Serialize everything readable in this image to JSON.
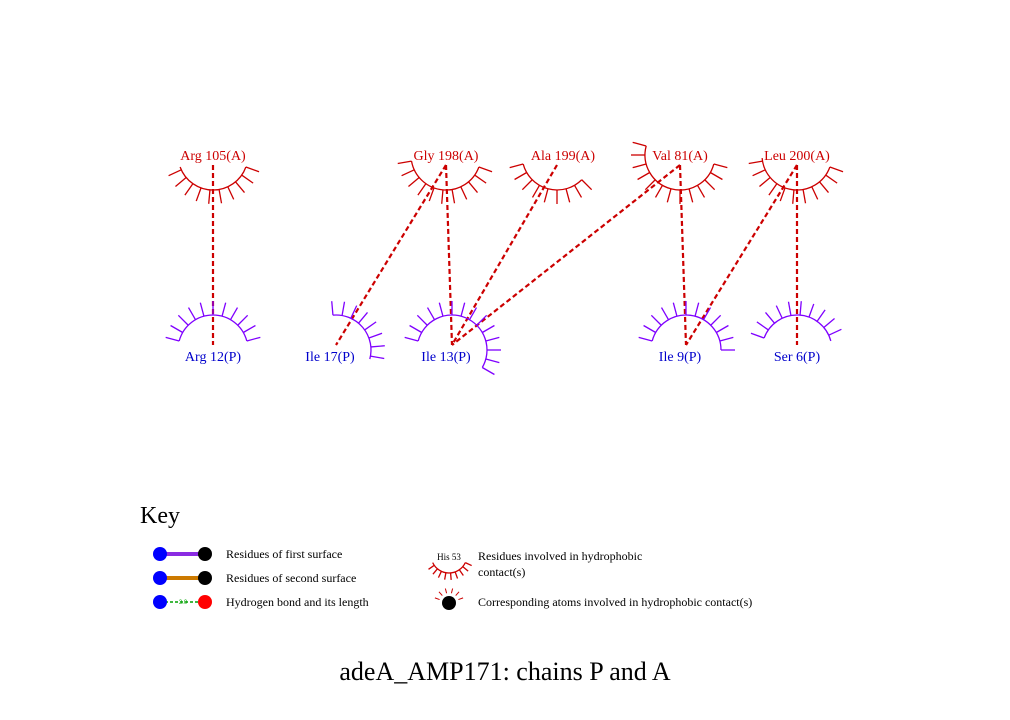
{
  "colors": {
    "chain_a": "#cc0000",
    "chain_p": "#7f00ff",
    "label_p": "#0000cc",
    "contact_line": "#cc0000",
    "first_surface_bond": "#8a2be2",
    "second_surface_bond": "#cc7a00",
    "hbond": "#00a000",
    "atom_blue": "#0000ff",
    "atom_black": "#000000",
    "atom_red": "#ff0000"
  },
  "residues_a": [
    {
      "id": "a1",
      "label": "Arg 105(A)"
    },
    {
      "id": "a2",
      "label": "Gly 198(A)"
    },
    {
      "id": "a3",
      "label": "Ala 199(A)"
    },
    {
      "id": "a4",
      "label": "Val 81(A)"
    },
    {
      "id": "a5",
      "label": "Leu 200(A)"
    }
  ],
  "residues_p": [
    {
      "id": "p1",
      "label": "Arg 12(P)"
    },
    {
      "id": "p2",
      "label": "Ile 17(P)"
    },
    {
      "id": "p3",
      "label": "Ile 13(P)"
    },
    {
      "id": "p4",
      "label": "Ile 9(P)"
    },
    {
      "id": "p5",
      "label": "Ser 6(P)"
    }
  ],
  "contacts": [
    {
      "a": "Arg 105(A)",
      "p": "Arg 12(P)"
    },
    {
      "a": "Gly 198(A)",
      "p": "Ile 17(P)"
    },
    {
      "a": "Gly 198(A)",
      "p": "Ile 13(P)"
    },
    {
      "a": "Ala 199(A)",
      "p": "Ile 13(P)"
    },
    {
      "a": "Val 81(A)",
      "p": "Ile 13(P)"
    },
    {
      "a": "Val 81(A)",
      "p": "Ile 9(P)"
    },
    {
      "a": "Leu 200(A)",
      "p": "Ile 9(P)"
    },
    {
      "a": "Leu 200(A)",
      "p": "Ser 6(P)"
    }
  ],
  "key": {
    "title": "Key",
    "first_surface": "Residues of first surface",
    "second_surface": "Residues of second surface",
    "hbond": "Hydrogen bond and its length",
    "hbond_length": "3.0",
    "hydrophobic_example": "His 53",
    "hydrophobic_line1": "Residues involved in hydrophobic",
    "hydrophobic_line2": "contact(s)",
    "atoms": "Corresponding atoms involved in hydrophobic contact(s)"
  },
  "title": "adeA_AMP171: chains P and A"
}
